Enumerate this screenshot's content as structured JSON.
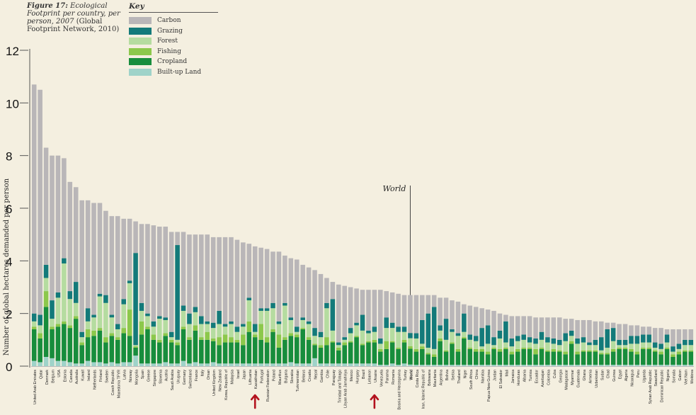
{
  "figure": {
    "label": "Figure 17:",
    "caption_italic": "Ecological Footprint per country, per person, 2007",
    "caption_plain": "(Global Footprint Network, 2010)"
  },
  "key": {
    "title": "Key",
    "items": [
      {
        "label": "Carbon",
        "color": "#b9b6b8"
      },
      {
        "label": "Grazing",
        "color": "#137a7a"
      },
      {
        "label": "Forest",
        "color": "#b5dca0"
      },
      {
        "label": "Fishing",
        "color": "#8cc84b"
      },
      {
        "label": "Cropland",
        "color": "#178d3c"
      },
      {
        "label": "Built-up Land",
        "color": "#9fd3c9"
      }
    ]
  },
  "chart_data": {
    "type": "bar",
    "stacked": true,
    "ylabel": "Number of global hectares demanded per person",
    "ylim": [
      0,
      12
    ],
    "yticks": [
      0,
      2,
      4,
      6,
      8,
      10,
      12
    ],
    "annotation": "World",
    "annotation_category": "World",
    "arrows_under": [
      "Kazakhstan",
      "Ukraine"
    ],
    "stack_order": [
      "Built-up Land",
      "Cropland",
      "Fishing",
      "Forest",
      "Grazing",
      "Carbon"
    ],
    "categories": [
      "United Arab Emirates",
      "Qatar",
      "Denmark",
      "Belgium",
      "USA",
      "Estonia",
      "Canada",
      "Australia",
      "Kuwait",
      "Ireland",
      "Netherlands",
      "Finland",
      "Sweden",
      "Czech Republic",
      "Macedonia TFYR",
      "Latvia",
      "Norway",
      "Mongolia",
      "Spain",
      "Greece",
      "Singapore",
      "Slovenia",
      "Austria",
      "Saudi Arabia",
      "Uruguay",
      "Germany",
      "Switzerland",
      "France",
      "Italy",
      "Oman",
      "United Kingdom",
      "New Zealand",
      "Korea, Republic of",
      "Malaysia",
      "Israel",
      "Japan",
      "Lithuania",
      "Kazakhstan",
      "Portugal",
      "Russian Federation",
      "Poland",
      "Mauritius",
      "Bulgaria",
      "Slovakia",
      "Turkmenistan",
      "Belarus",
      "Croatia",
      "Nepal",
      "Gambia",
      "Chile",
      "Paraguay",
      "Trinidad and Tobago",
      "Libyan Arab Jamahiriya",
      "Mexico",
      "Hungary",
      "Brazil",
      "Lebanon",
      "Ukraine",
      "Venezuela",
      "Panama",
      "Romania",
      "Bosnia and Herzegovina",
      "Turkey",
      "World",
      "Costa Rica",
      "Iran, Islamic Republic of",
      "Botswana",
      "Mauritania",
      "Argentina",
      "Bolivia",
      "Serbia",
      "Thailand",
      "Niger",
      "South Africa",
      "China",
      "Namibia",
      "Papua New Guinea",
      "Jordan",
      "El Salvador",
      "Mali",
      "Jamaica",
      "Honduras",
      "Albania",
      "Tunisia",
      "Ecuador",
      "Azerbaijan",
      "Colombia",
      "Cuba",
      "Georgia",
      "Madagascar",
      "Myanmar",
      "Guatemala",
      "Ghana",
      "Armenia",
      "Uzbekistan",
      "Sudan",
      "Chad",
      "Guinea",
      "Egypt",
      "Algeria",
      "Nicaragua",
      "Peru",
      "Uganda",
      "Syrian Arab Republic",
      "Swaziland",
      "Dominican Republic",
      "Nigeria",
      "Somalia",
      "Gabon",
      "Viet Nam",
      "Moldova"
    ],
    "totals": [
      10.7,
      10.5,
      8.3,
      8.0,
      8.0,
      7.9,
      7.0,
      6.8,
      6.3,
      6.3,
      6.2,
      6.2,
      5.9,
      5.7,
      5.7,
      5.6,
      5.6,
      5.5,
      5.4,
      5.4,
      5.35,
      5.3,
      5.3,
      5.1,
      5.1,
      5.1,
      5.0,
      5.0,
      5.0,
      5.0,
      4.9,
      4.9,
      4.9,
      4.9,
      4.8,
      4.7,
      4.65,
      4.55,
      4.5,
      4.45,
      4.35,
      4.35,
      4.2,
      4.1,
      4.05,
      3.85,
      3.75,
      3.65,
      3.5,
      3.35,
      3.2,
      3.1,
      3.05,
      3.0,
      2.95,
      2.9,
      2.9,
      2.9,
      2.9,
      2.85,
      2.8,
      2.75,
      2.7,
      2.7,
      2.7,
      2.7,
      2.7,
      2.7,
      2.6,
      2.6,
      2.5,
      2.45,
      2.35,
      2.3,
      2.25,
      2.2,
      2.15,
      2.1,
      2.0,
      1.95,
      1.9,
      1.9,
      1.9,
      1.9,
      1.85,
      1.85,
      1.85,
      1.85,
      1.85,
      1.8,
      1.8,
      1.75,
      1.75,
      1.75,
      1.7,
      1.7,
      1.65,
      1.65,
      1.6,
      1.6,
      1.55,
      1.55,
      1.5,
      1.5,
      1.45,
      1.45,
      1.4,
      1.4,
      1.4,
      1.4,
      1.4
    ],
    "built_up": [
      0.2,
      0.15,
      0.35,
      0.3,
      0.2,
      0.2,
      0.15,
      0.1,
      0.1,
      0.2,
      0.15,
      0.15,
      0.1,
      0.15,
      0.1,
      0.15,
      0.15,
      0.4,
      0.1,
      0.1,
      0.1,
      0.1,
      0.15,
      0.1,
      0.1,
      0.2,
      0.1,
      0.15,
      0.1,
      0.1,
      0.15,
      0.1,
      0.1,
      0.1,
      0.1,
      0.1,
      0.1,
      0.1,
      0.1,
      0.1,
      0.1,
      0.1,
      0.1,
      0.15,
      0.1,
      0.1,
      0.1,
      0.3,
      0.1,
      0.1,
      0.1,
      0.1,
      0.1,
      0.1,
      0.1,
      0.1,
      0.1,
      0.1,
      0.05,
      0.05,
      0.1,
      0.05,
      0.1,
      0.06,
      0.05,
      0.05,
      0.05,
      0.05,
      0.05,
      0.05,
      0.05,
      0.05,
      0.05,
      0.05,
      0.05,
      0.05,
      0.05,
      0.05,
      0.05,
      0.05,
      0.05,
      0.05,
      0.05,
      0.05,
      0.05,
      0.05,
      0.05,
      0.05,
      0.05,
      0.05,
      0.05,
      0.05,
      0.05,
      0.05,
      0.05,
      0.05,
      0.05,
      0.05,
      0.05,
      0.05,
      0.05,
      0.05,
      0.05,
      0.05,
      0.05,
      0.05,
      0.05,
      0.05,
      0.05,
      0.05,
      0.05
    ],
    "cropland": [
      1.2,
      0.9,
      1.9,
      1.1,
      1.3,
      1.4,
      1.3,
      1.7,
      0.7,
      0.9,
      1.0,
      1.2,
      0.8,
      1.0,
      0.9,
      1.1,
      1.0,
      0.3,
      1.1,
      1.3,
      0.9,
      0.8,
      1.0,
      0.8,
      0.7,
      1.2,
      0.9,
      1.2,
      0.9,
      0.9,
      0.8,
      0.7,
      0.8,
      0.8,
      0.8,
      0.7,
      1.2,
      1.0,
      0.9,
      0.8,
      1.2,
      0.6,
      0.9,
      1.0,
      1.0,
      1.3,
      0.9,
      0.5,
      0.6,
      0.7,
      0.8,
      0.5,
      0.7,
      0.8,
      1.0,
      0.7,
      0.8,
      0.8,
      0.5,
      0.6,
      0.8,
      0.6,
      0.8,
      0.6,
      0.5,
      0.6,
      0.4,
      0.3,
      0.9,
      0.5,
      0.8,
      0.5,
      1.0,
      0.6,
      0.5,
      0.5,
      0.4,
      0.6,
      0.5,
      0.6,
      0.4,
      0.5,
      0.6,
      0.6,
      0.4,
      0.6,
      0.5,
      0.5,
      0.5,
      0.4,
      0.8,
      0.4,
      0.5,
      0.5,
      0.5,
      0.4,
      0.4,
      0.5,
      0.6,
      0.6,
      0.5,
      0.4,
      0.6,
      0.6,
      0.5,
      0.4,
      0.6,
      0.3,
      0.4,
      0.5,
      0.5
    ],
    "fishing": [
      0.1,
      0.2,
      0.6,
      0.1,
      0.1,
      0.1,
      0.1,
      0.1,
      0.1,
      0.3,
      0.2,
      0.1,
      0.2,
      0.1,
      0.1,
      0.2,
      1.0,
      0.05,
      0.5,
      0.1,
      0.2,
      0.1,
      0.1,
      0.1,
      0.1,
      0.1,
      0.1,
      0.2,
      0.1,
      0.3,
      0.1,
      0.3,
      0.3,
      0.2,
      0.1,
      0.4,
      0.4,
      0.1,
      0.6,
      0.2,
      0.1,
      0.5,
      0.1,
      0.1,
      0.1,
      0.05,
      0.1,
      0.05,
      0.1,
      0.3,
      0.05,
      0.1,
      0.1,
      0.05,
      0.05,
      0.05,
      0.05,
      0.1,
      0.1,
      0.3,
      0.05,
      0.05,
      0.1,
      0.1,
      0.1,
      0.1,
      0.05,
      0.1,
      0.1,
      0.05,
      0.05,
      0.1,
      0.05,
      0.05,
      0.1,
      0.1,
      0.1,
      0.05,
      0.1,
      0.05,
      0.1,
      0.1,
      0.05,
      0.05,
      0.2,
      0.05,
      0.05,
      0.1,
      0.05,
      0.1,
      0.1,
      0.1,
      0.05,
      0.05,
      0.05,
      0.05,
      0.05,
      0.1,
      0.05,
      0.05,
      0.1,
      0.1,
      0.05,
      0.05,
      0.05,
      0.1,
      0.05,
      0.1,
      0.1,
      0.05,
      0.05
    ],
    "forest": [
      0.2,
      0.3,
      0.5,
      0.3,
      1.0,
      2.2,
      1.0,
      0.5,
      0.2,
      0.3,
      0.5,
      1.2,
      1.3,
      0.6,
      0.3,
      0.9,
      1.0,
      0.05,
      0.4,
      0.4,
      0.3,
      0.8,
      0.5,
      0.1,
      0.1,
      0.6,
      0.5,
      0.5,
      0.5,
      0.3,
      0.4,
      0.5,
      0.3,
      0.5,
      0.3,
      0.3,
      0.8,
      0.1,
      0.5,
      1.0,
      0.8,
      0.4,
      1.2,
      0.5,
      0.1,
      0.3,
      0.5,
      0.3,
      0.3,
      1.1,
      0.4,
      0.1,
      0.1,
      0.3,
      0.4,
      0.5,
      0.3,
      0.3,
      0.2,
      0.5,
      0.5,
      0.6,
      0.3,
      0.3,
      0.4,
      0.1,
      0.2,
      0.2,
      0.3,
      0.4,
      0.4,
      0.5,
      0.2,
      0.3,
      0.3,
      0.1,
      0.3,
      0.1,
      0.4,
      0.2,
      0.2,
      0.3,
      0.3,
      0.2,
      0.2,
      0.3,
      0.3,
      0.2,
      0.2,
      0.4,
      0.2,
      0.3,
      0.3,
      0.2,
      0.2,
      0.1,
      0.2,
      0.3,
      0.1,
      0.1,
      0.2,
      0.3,
      0.2,
      0.2,
      0.1,
      0.1,
      0.2,
      0.1,
      0.1,
      0.2,
      0.2
    ],
    "grazing": [
      0.3,
      0.4,
      0.5,
      0.7,
      0.2,
      0.2,
      0.3,
      0.8,
      0.2,
      0.5,
      0.1,
      0.1,
      0.3,
      0.1,
      0.2,
      0.2,
      0.1,
      3.5,
      0.3,
      0.1,
      0.2,
      0.1,
      0.1,
      0.2,
      3.6,
      0.2,
      0.4,
      0.2,
      0.3,
      0.1,
      0.2,
      0.5,
      0.1,
      0.1,
      0.2,
      0.1,
      0.1,
      0.3,
      0.1,
      0.1,
      0.2,
      0.1,
      0.1,
      0.1,
      0.2,
      0.1,
      0.1,
      0.3,
      0.2,
      0.2,
      1.2,
      0.1,
      0.1,
      0.2,
      0.1,
      0.6,
      0.1,
      0.2,
      0.2,
      0.4,
      0.2,
      0.2,
      0.2,
      0.2,
      0.2,
      0.9,
      1.3,
      1.6,
      0.2,
      0.8,
      0.1,
      0.1,
      0.7,
      0.2,
      0.2,
      0.7,
      0.7,
      0.3,
      0.3,
      0.8,
      0.3,
      0.2,
      0.2,
      0.2,
      0.2,
      0.3,
      0.2,
      0.2,
      0.2,
      0.3,
      0.2,
      0.2,
      0.2,
      0.1,
      0.2,
      0.5,
      0.7,
      0.5,
      0.2,
      0.2,
      0.3,
      0.3,
      0.3,
      0.3,
      0.2,
      0.2,
      0.3,
      0.2,
      0.2,
      0.2,
      0.2
    ]
  }
}
